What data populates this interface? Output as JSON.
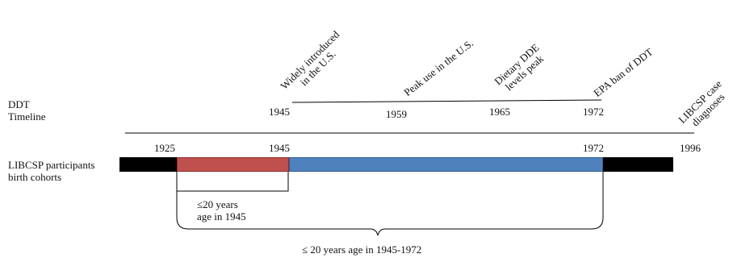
{
  "ddt_label": "DDT\nTimeline",
  "cohort_label": "LIBCSP participants\nbirth cohorts",
  "events": [
    {
      "text": "Widely introduced\nin the U.S."
    },
    {
      "text": "Peak use in the U.S."
    },
    {
      "text": "Dietary DDE\nlevels peak"
    },
    {
      "text": "EPA ban of DDT"
    },
    {
      "text": "LIBCSP case\ndiagnoses"
    }
  ],
  "ddt_years": [
    "1945",
    "1959",
    "1965",
    "1972"
  ],
  "axis_years": [
    "1925",
    "1945",
    "1972",
    "1996"
  ],
  "segments": [
    {
      "name": "pre",
      "color": "#000000"
    },
    {
      "name": "1925-1945",
      "color": "#c0504d"
    },
    {
      "name": "1945-1972",
      "color": "#4f81bd"
    },
    {
      "name": "post",
      "color": "#000000"
    }
  ],
  "bracket_small_label": "≤20 years\nage in 1945",
  "bracket_large_label": "≤ 20 years age in 1945-1972"
}
